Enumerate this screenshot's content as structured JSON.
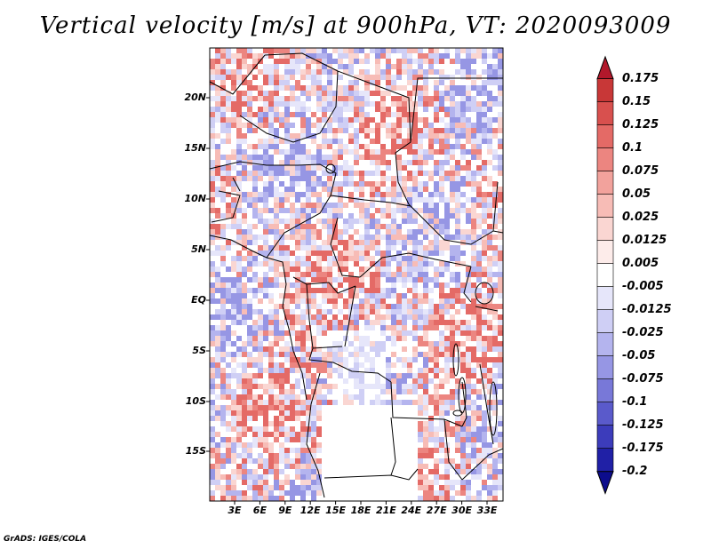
{
  "title": "Vertical velocity [m/s] at 900hPa, VT: 2020093009",
  "map": {
    "latitude_labels": [
      "20N",
      "15N",
      "10N",
      "5N",
      "EQ",
      "5S",
      "10S",
      "15S"
    ],
    "longitude_labels": [
      "3E",
      "6E",
      "9E",
      "12E",
      "15E",
      "18E",
      "21E",
      "24E",
      "27E",
      "30E",
      "33E"
    ]
  },
  "colorbar": {
    "levels": [
      "0.175",
      "0.15",
      "0.125",
      "0.1",
      "0.075",
      "0.05",
      "0.025",
      "0.0125",
      "0.005",
      "-0.005",
      "-0.0125",
      "-0.025",
      "-0.05",
      "-0.075",
      "-0.1",
      "-0.125",
      "-0.175",
      "-0.2"
    ],
    "colors": [
      "#b2182b",
      "#c83737",
      "#d8504e",
      "#e46a66",
      "#ec8580",
      "#f2a29c",
      "#f7bcb6",
      "#fad6d2",
      "#fdecea",
      "#ffffff",
      "#e6e6fa",
      "#cfcff5",
      "#b4b4ee",
      "#9696e4",
      "#7878d8",
      "#5a5acb",
      "#3c3cbb",
      "#2020a6",
      "#0c0c8c"
    ]
  },
  "footer": "GrADS: IGES/COLA"
}
